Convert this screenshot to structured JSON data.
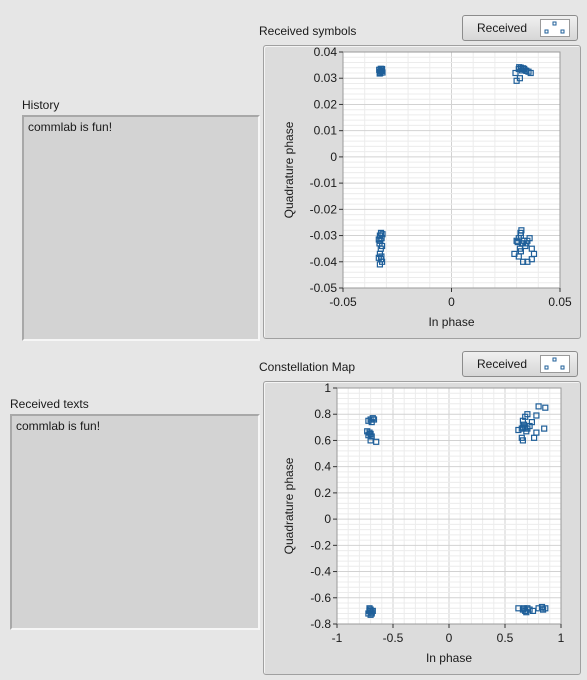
{
  "history": {
    "label": "History",
    "text": "commlab is fun!"
  },
  "received_texts": {
    "label": "Received texts",
    "text": "commlab is fun!"
  },
  "colors": {
    "marker": "#1f5f99",
    "grid_minor": "#ececec",
    "grid_major": "#d2d2d2",
    "plot_bg": "#ffffff"
  },
  "chart_data": [
    {
      "type": "scatter",
      "title": "Received symbols",
      "xlabel": "In phase",
      "ylabel": "Quadrature phase",
      "xlim": [
        -0.05,
        0.05
      ],
      "ylim": [
        -0.05,
        0.04
      ],
      "xticks": [
        -0.05,
        0,
        0.05
      ],
      "xtick_labels": [
        "-0.05",
        "0",
        "0.05"
      ],
      "yticks": [
        0.04,
        0.03,
        0.02,
        0.01,
        0,
        -0.01,
        -0.02,
        -0.03,
        -0.04,
        -0.05
      ],
      "ytick_labels": [
        "0.04",
        "0.03",
        "0.02",
        "0.01",
        "0",
        "-0.01",
        "-0.02",
        "-0.03",
        "-0.04",
        "-0.05"
      ],
      "grid": true,
      "legend": {
        "label": "Received"
      },
      "series": [
        {
          "name": "Received",
          "points": [
            [
              -0.0325,
              0.033
            ],
            [
              -0.033,
              0.0325
            ],
            [
              -0.032,
              0.0335
            ],
            [
              -0.0328,
              0.032
            ],
            [
              -0.0322,
              0.0328
            ],
            [
              -0.0333,
              0.0332
            ],
            [
              -0.0318,
              0.0322
            ],
            [
              -0.0326,
              0.0336
            ],
            [
              -0.0331,
              0.0318
            ],
            [
              0.031,
              0.0335
            ],
            [
              0.032,
              0.034
            ],
            [
              0.033,
              0.0338
            ],
            [
              0.034,
              0.033
            ],
            [
              0.0355,
              0.0325
            ],
            [
              0.0365,
              0.032
            ],
            [
              0.0295,
              0.032
            ],
            [
              0.03,
              0.029
            ],
            [
              0.0315,
              0.03
            ],
            [
              0.0325,
              0.033
            ],
            [
              0.0335,
              0.0335
            ],
            [
              0.0345,
              0.0328
            ],
            [
              0.0312,
              0.0342
            ],
            [
              -0.0325,
              -0.029
            ],
            [
              -0.033,
              -0.03
            ],
            [
              -0.0322,
              -0.031
            ],
            [
              -0.0328,
              -0.032
            ],
            [
              -0.0332,
              -0.033
            ],
            [
              -0.032,
              -0.034
            ],
            [
              -0.0326,
              -0.035
            ],
            [
              -0.033,
              -0.037
            ],
            [
              -0.0335,
              -0.0385
            ],
            [
              -0.0325,
              -0.039
            ],
            [
              -0.032,
              -0.04
            ],
            [
              -0.033,
              -0.041
            ],
            [
              -0.0323,
              -0.038
            ],
            [
              -0.0318,
              -0.0295
            ],
            [
              -0.0335,
              -0.0315
            ],
            [
              0.03,
              -0.032
            ],
            [
              0.031,
              -0.031
            ],
            [
              0.032,
              -0.03
            ],
            [
              0.033,
              -0.033
            ],
            [
              0.034,
              -0.034
            ],
            [
              0.035,
              -0.032
            ],
            [
              0.036,
              -0.031
            ],
            [
              0.037,
              -0.035
            ],
            [
              0.038,
              -0.037
            ],
            [
              0.037,
              -0.039
            ],
            [
              0.035,
              -0.04
            ],
            [
              0.033,
              -0.04
            ],
            [
              0.031,
              -0.038
            ],
            [
              0.029,
              -0.037
            ],
            [
              0.0315,
              -0.035
            ],
            [
              0.0325,
              -0.033
            ],
            [
              0.0335,
              -0.032
            ],
            [
              0.0345,
              -0.033
            ],
            [
              0.032,
              -0.036
            ],
            [
              0.0318,
              -0.029
            ],
            [
              0.0322,
              -0.028
            ],
            [
              0.0305,
              -0.0325
            ]
          ]
        }
      ]
    },
    {
      "type": "scatter",
      "title": "Constellation Map",
      "xlabel": "In phase",
      "ylabel": "Quadrature phase",
      "xlim": [
        -1,
        1
      ],
      "ylim": [
        -0.8,
        1
      ],
      "xticks": [
        -1,
        -0.5,
        0,
        0.5,
        1
      ],
      "xtick_labels": [
        "-1",
        "-0.5",
        "0",
        "0.5",
        "1"
      ],
      "yticks": [
        1,
        0.8,
        0.6,
        0.4,
        0.2,
        0,
        -0.2,
        -0.4,
        -0.6,
        -0.8
      ],
      "ytick_labels": [
        "1",
        "0.8",
        "0.6",
        "0.4",
        "0.2",
        "0",
        "-0.2",
        "-0.4",
        "-0.6",
        "-0.8"
      ],
      "grid": true,
      "legend": {
        "label": "Received"
      },
      "series": [
        {
          "name": "Received",
          "points": [
            [
              -0.7,
              0.76
            ],
            [
              -0.68,
              0.77
            ],
            [
              -0.72,
              0.75
            ],
            [
              -0.69,
              0.74
            ],
            [
              -0.71,
              0.66
            ],
            [
              -0.72,
              0.64
            ],
            [
              -0.7,
              0.65
            ],
            [
              -0.69,
              0.63
            ],
            [
              -0.7,
              0.6
            ],
            [
              -0.65,
              0.59
            ],
            [
              -0.73,
              0.67
            ],
            [
              -0.67,
              0.76
            ],
            [
              0.62,
              0.68
            ],
            [
              0.65,
              0.69
            ],
            [
              0.66,
              0.7
            ],
            [
              0.67,
              0.72
            ],
            [
              0.68,
              0.7
            ],
            [
              0.7,
              0.69
            ],
            [
              0.72,
              0.71
            ],
            [
              0.66,
              0.75
            ],
            [
              0.68,
              0.78
            ],
            [
              0.7,
              0.8
            ],
            [
              0.78,
              0.79
            ],
            [
              0.8,
              0.86
            ],
            [
              0.86,
              0.85
            ],
            [
              0.85,
              0.69
            ],
            [
              0.78,
              0.66
            ],
            [
              0.76,
              0.62
            ],
            [
              0.66,
              0.6
            ],
            [
              0.65,
              0.62
            ],
            [
              0.74,
              0.74
            ],
            [
              0.69,
              0.67
            ],
            [
              -0.7,
              -0.69
            ],
            [
              -0.71,
              -0.7
            ],
            [
              -0.69,
              -0.71
            ],
            [
              -0.72,
              -0.72
            ],
            [
              -0.7,
              -0.73
            ],
            [
              -0.68,
              -0.7
            ],
            [
              -0.71,
              -0.68
            ],
            [
              -0.69,
              -0.72
            ],
            [
              0.62,
              -0.68
            ],
            [
              0.66,
              -0.69
            ],
            [
              0.68,
              -0.7
            ],
            [
              0.7,
              -0.68
            ],
            [
              0.72,
              -0.69
            ],
            [
              0.75,
              -0.7
            ],
            [
              0.8,
              -0.68
            ],
            [
              0.83,
              -0.67
            ],
            [
              0.86,
              -0.68
            ],
            [
              0.84,
              -0.69
            ],
            [
              0.69,
              -0.71
            ],
            [
              0.67,
              -0.68
            ]
          ]
        }
      ]
    }
  ]
}
